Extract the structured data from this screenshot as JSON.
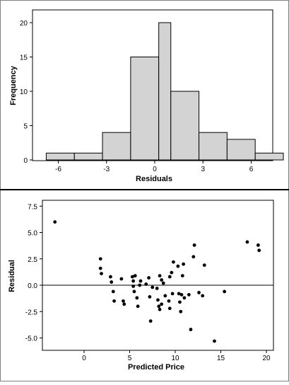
{
  "chart_data": [
    {
      "type": "bar",
      "subtype": "histogram",
      "xlabel": "Residuals",
      "ylabel": "Frequency",
      "bins": [
        {
          "from": -6.75,
          "to": -5.0,
          "count": 1
        },
        {
          "from": -5.0,
          "to": -3.25,
          "count": 1
        },
        {
          "from": -3.25,
          "to": -1.5,
          "count": 4
        },
        {
          "from": -1.5,
          "to": 0.25,
          "count": 15
        },
        {
          "from": 0.25,
          "to": 1.0,
          "count": 20
        },
        {
          "from": 1.0,
          "to": 2.75,
          "count": 10
        },
        {
          "from": 2.75,
          "to": 4.5,
          "count": 4
        },
        {
          "from": 4.5,
          "to": 6.25,
          "count": 3
        },
        {
          "from": 6.25,
          "to": 8.0,
          "count": 1
        }
      ],
      "xticks": [
        "-6",
        "-3",
        "0",
        "3",
        "6"
      ],
      "yticks": [
        "0",
        "5",
        "10",
        "15",
        "20"
      ],
      "bar_color": "#d3d3d3",
      "edge_color": "#000000"
    },
    {
      "type": "scatter",
      "xlabel": "Predicted Price",
      "ylabel": "Residual",
      "xticks": [
        "0",
        "5",
        "10",
        "15",
        "20"
      ],
      "yticks": [
        "7.5",
        "5.0",
        "2.5",
        "0.0",
        "-2.5",
        "-5.0"
      ],
      "reference_line_y": 0,
      "point_color": "#000000",
      "points": [
        [
          -3.2,
          6.0
        ],
        [
          1.8,
          2.5
        ],
        [
          1.8,
          1.6
        ],
        [
          1.9,
          1.1
        ],
        [
          2.9,
          0.8
        ],
        [
          3.0,
          0.3
        ],
        [
          3.2,
          -0.6
        ],
        [
          3.3,
          -1.5
        ],
        [
          4.1,
          0.6
        ],
        [
          4.3,
          -1.5
        ],
        [
          4.4,
          -1.8
        ],
        [
          5.3,
          0.8
        ],
        [
          5.4,
          0.4
        ],
        [
          5.4,
          -0.1
        ],
        [
          5.5,
          -0.6
        ],
        [
          5.6,
          0.9
        ],
        [
          5.8,
          -1.2
        ],
        [
          5.9,
          -2.0
        ],
        [
          6.1,
          0.0
        ],
        [
          6.2,
          0.4
        ],
        [
          6.8,
          0.1
        ],
        [
          7.1,
          0.7
        ],
        [
          7.2,
          -1.1
        ],
        [
          7.3,
          -3.4
        ],
        [
          7.5,
          -0.2
        ],
        [
          8.0,
          -0.3
        ],
        [
          8.1,
          -1.4
        ],
        [
          8.2,
          -2.0
        ],
        [
          8.3,
          -2.3
        ],
        [
          8.3,
          0.9
        ],
        [
          8.5,
          -1.8
        ],
        [
          8.5,
          0.5
        ],
        [
          8.7,
          0.2
        ],
        [
          8.9,
          -1.0
        ],
        [
          9.3,
          -1.5
        ],
        [
          9.4,
          -2.2
        ],
        [
          9.4,
          0.8
        ],
        [
          9.6,
          1.2
        ],
        [
          9.7,
          -0.8
        ],
        [
          9.8,
          2.2
        ],
        [
          10.3,
          1.8
        ],
        [
          10.4,
          -0.8
        ],
        [
          10.5,
          -1.6
        ],
        [
          10.6,
          -2.5
        ],
        [
          10.7,
          -0.9
        ],
        [
          10.8,
          0.9
        ],
        [
          10.9,
          2.0
        ],
        [
          11.0,
          -1.2
        ],
        [
          11.5,
          -0.9
        ],
        [
          11.7,
          -4.2
        ],
        [
          12.0,
          2.7
        ],
        [
          12.1,
          3.8
        ],
        [
          12.6,
          -0.7
        ],
        [
          13.0,
          -1.0
        ],
        [
          13.2,
          1.9
        ],
        [
          14.3,
          -5.3
        ],
        [
          15.4,
          -0.6
        ],
        [
          17.9,
          4.1
        ],
        [
          19.1,
          3.8
        ],
        [
          19.2,
          3.3
        ]
      ]
    }
  ]
}
